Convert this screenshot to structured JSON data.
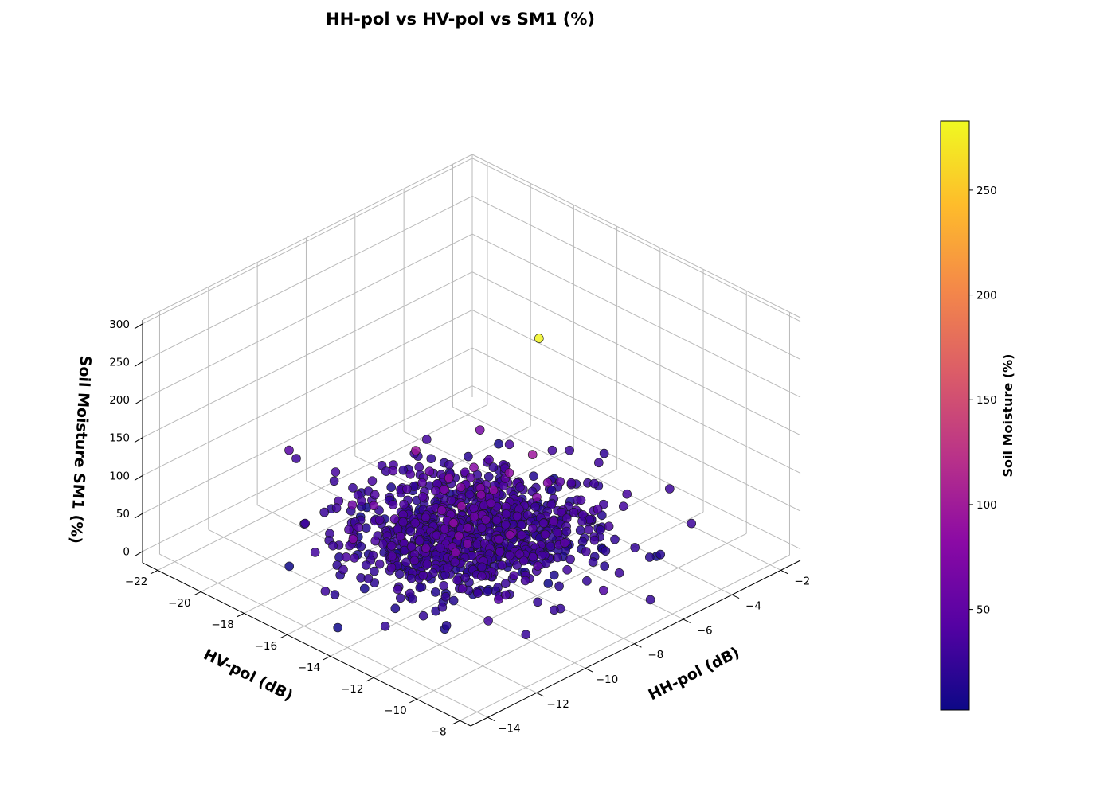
{
  "chart_data": {
    "type": "scatter",
    "title": "HH-pol vs HV-pol vs SM1 (%)",
    "xlabel": "HH-pol (dB)",
    "ylabel": "HV-pol (dB)",
    "zlabel": "Soil Moisture SM1 (%)",
    "xlim": [
      -14.7,
      -1.2
    ],
    "ylim": [
      -22.7,
      -7.5
    ],
    "zlim": [
      -15,
      305
    ],
    "xticks": [
      -14,
      -12,
      -10,
      -8,
      -6,
      -4,
      -2
    ],
    "yticks": [
      -22,
      -20,
      -18,
      -16,
      -14,
      -12,
      -10,
      -8
    ],
    "zticks": [
      0,
      50,
      100,
      150,
      200,
      250,
      300
    ],
    "grid": true,
    "colormap": "plasma",
    "colorbar": {
      "label": "Soil Moisture (%)",
      "range": [
        2,
        283
      ],
      "ticks": [
        50,
        100,
        150,
        200,
        250
      ]
    },
    "points_summary": {
      "count": 1000,
      "hh_center": -8.0,
      "hh_spread": 1.9,
      "hv_center": -15.0,
      "hv_spread": 2.0,
      "sm_center": 25,
      "sm_spread": 9
    },
    "outlier": {
      "x": -6.6,
      "y": -13.5,
      "z": 280
    }
  }
}
